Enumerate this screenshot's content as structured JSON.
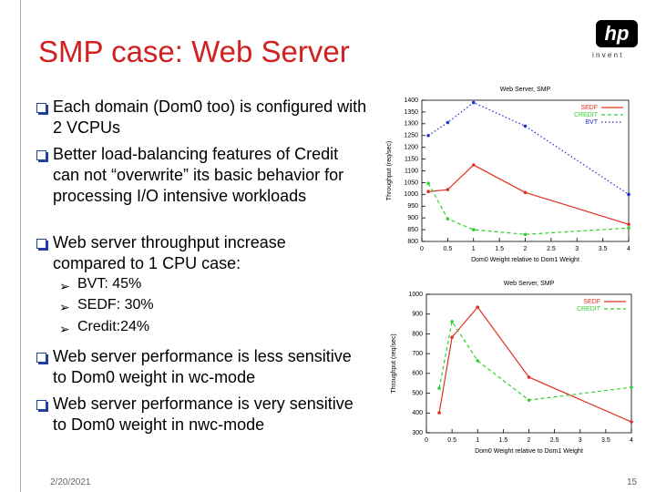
{
  "slide": {
    "title": "SMP case: Web Server",
    "logo": {
      "mark": "hp",
      "tagline": "i n v e n t"
    },
    "bullets": [
      "Each domain (Dom0 too) is configured with 2 VCPUs",
      "Better load-balancing features of Credit can not “overwrite” its basic behavior for processing I/O intensive workloads",
      "Web server throughput increase compared to 1 CPU case:"
    ],
    "sub_bullets": [
      "BVT: 45%",
      "SEDF: 30%",
      "Credit:24%"
    ],
    "bullets_after": [
      "Web server performance is less sensitive to Dom0 weight in wc-mode",
      "Web server performance is very sensitive to Dom0 weight in nwc-mode"
    ],
    "footer": {
      "date": "2/20/2021",
      "page": "15"
    }
  },
  "chart_data": [
    {
      "type": "line",
      "title": "Web Server, SMP",
      "x_label": "Dom0 Weight relative to Dom1 Weight",
      "y_label": "Throughput (req/sec)",
      "x": [
        0.125,
        0.5,
        1,
        2,
        4
      ],
      "series": [
        {
          "name": "SEDF",
          "color": "#e03020",
          "dash": "solid",
          "values": [
            1012,
            1020,
            1125,
            1008,
            873
          ]
        },
        {
          "name": "CREDIT",
          "color": "#30d030",
          "dash": "dashed",
          "values": [
            1047,
            896,
            850,
            830,
            857
          ]
        },
        {
          "name": "BVT",
          "color": "#2030d0",
          "dash": "dotted",
          "values": [
            1250,
            1305,
            1390,
            1290,
            1000
          ]
        }
      ],
      "xlim": [
        0,
        4
      ],
      "xticks": [
        0,
        0.5,
        1,
        1.5,
        2,
        2.5,
        3,
        3.5,
        4
      ],
      "ylim": [
        800,
        1400
      ],
      "yticks": [
        800,
        850,
        900,
        950,
        1000,
        1050,
        1100,
        1150,
        1200,
        1250,
        1300,
        1350,
        1400
      ],
      "legend": "top-right",
      "grid": false
    },
    {
      "type": "line",
      "title": "Web Server, SMP",
      "x_label": "Dom0 Weight relative to Dom1 Weight",
      "y_label": "Throughput (req/sec)",
      "x": [
        0.25,
        0.5,
        1,
        2,
        4
      ],
      "series": [
        {
          "name": "SEDF",
          "color": "#e03020",
          "dash": "solid",
          "values": [
            401,
            783,
            935,
            581,
            355
          ]
        },
        {
          "name": "CREDIT",
          "color": "#30d030",
          "dash": "dashed",
          "values": [
            525,
            862,
            664,
            465,
            530
          ]
        }
      ],
      "xlim": [
        0,
        4
      ],
      "xticks": [
        0,
        0.5,
        1,
        1.5,
        2,
        2.5,
        3,
        3.5,
        4
      ],
      "ylim": [
        300,
        1000
      ],
      "yticks": [
        300,
        400,
        500,
        600,
        700,
        800,
        900,
        1000
      ],
      "legend": "top-right",
      "grid": false
    }
  ]
}
